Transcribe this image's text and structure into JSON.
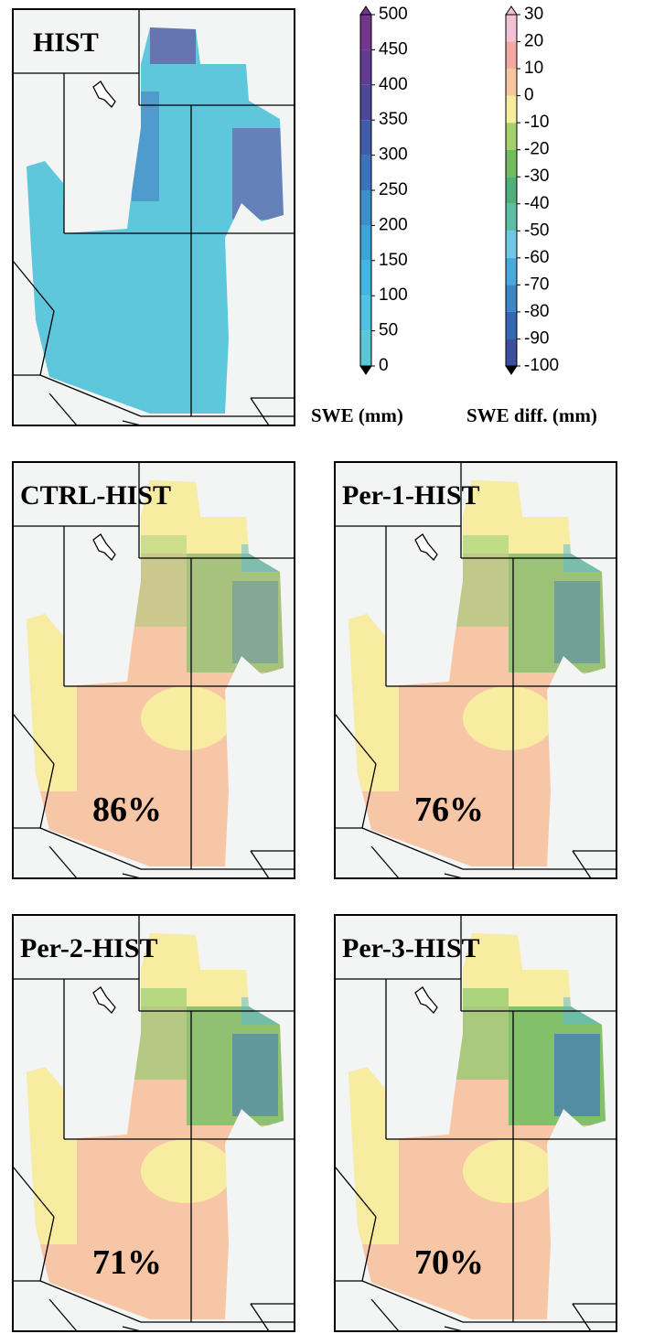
{
  "panels": [
    {
      "label": "HIST"
    },
    {
      "label": "CTRL-HIST",
      "percent": "86%"
    },
    {
      "label": "Per-1-HIST",
      "percent": "76%"
    },
    {
      "label": "Per-2-HIST",
      "percent": "71%"
    },
    {
      "label": "Per-3-HIST",
      "percent": "70%"
    }
  ],
  "colorbars": [
    {
      "title": "SWE (mm)",
      "ticks": [
        0,
        50,
        100,
        150,
        200,
        250,
        300,
        350,
        400,
        450,
        500
      ]
    },
    {
      "title": "SWE diff. (mm)",
      "ticks": [
        -100,
        -90,
        -80,
        -70,
        -60,
        -50,
        -40,
        -30,
        -20,
        -10,
        0,
        10,
        20,
        30
      ]
    }
  ]
}
